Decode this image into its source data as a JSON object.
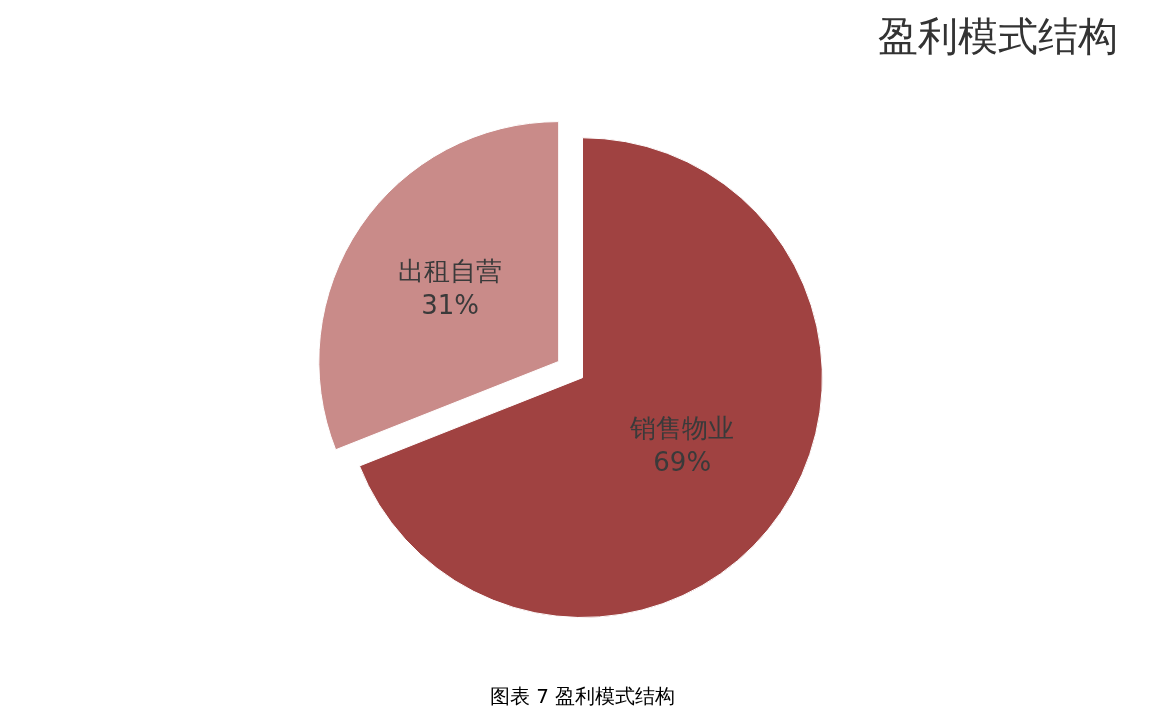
{
  "chart_data": {
    "type": "pie",
    "title": "盈利模式结构",
    "categories": [
      "销售物业",
      "出租自营"
    ],
    "values": [
      69,
      31
    ],
    "value_labels": [
      "69%",
      "31%"
    ],
    "colors": [
      "#a04241",
      "#c98b89"
    ],
    "annotations": [
      "图表 7 盈利模式结构"
    ]
  }
}
